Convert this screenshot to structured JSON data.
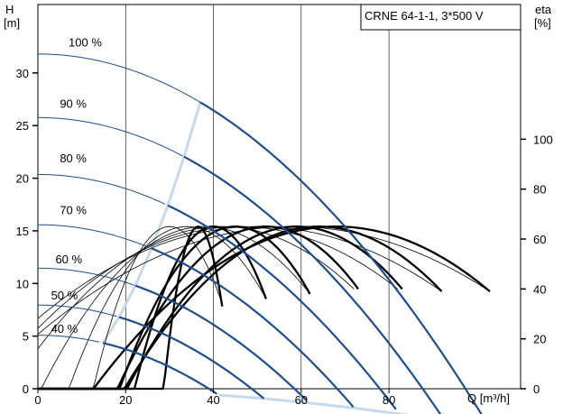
{
  "chart_data": {
    "type": "line",
    "title": "CRNE 64-1-1, 3*500 V",
    "y_left_label": [
      "H",
      "[m]"
    ],
    "y_right_label": [
      "eta",
      "[%]"
    ],
    "x_unit_label": "Q [m³/h]",
    "x_ticks": [
      "0",
      "20",
      "40",
      "60",
      "80"
    ],
    "y_left_ticks": [
      "0",
      "5",
      "10",
      "15",
      "20",
      "25",
      "30"
    ],
    "y_right_ticks": [
      "0",
      "20",
      "40",
      "60",
      "80",
      "100"
    ],
    "xlim": [
      0,
      110
    ],
    "ylim_left": [
      0,
      36.5
    ],
    "ylim_right": [
      0,
      154
    ],
    "grid": true,
    "colors": {
      "head_curve": "#1f4e8c",
      "head_extension": "#1f4e8c",
      "envelope": "#c7d9ec",
      "efficiency": "#000000"
    },
    "speed_curves": [
      {
        "label": "100 %",
        "speed": 1.0,
        "label_at": [
          7,
          32.5
        ]
      },
      {
        "label": "90 %",
        "speed": 0.9,
        "label_at": [
          5,
          26.7
        ]
      },
      {
        "label": "80 %",
        "speed": 0.8,
        "label_at": [
          5,
          21.5
        ]
      },
      {
        "label": "70 %",
        "speed": 0.7,
        "label_at": [
          5,
          16.6
        ]
      },
      {
        "label": "60 %",
        "speed": 0.6,
        "label_at": [
          4,
          11.9
        ]
      },
      {
        "label": "50 %",
        "speed": 0.5,
        "label_at": [
          3,
          8.5
        ]
      },
      {
        "label": "40 %",
        "speed": 0.4,
        "label_at": [
          3,
          5.3
        ]
      }
    ],
    "head_model": {
      "h0": 31.8,
      "k": 0.00335,
      "q_min_full": 37,
      "q_max_full": 103
    },
    "efficiency_curves": [
      {
        "q_peak": 30.0,
        "peak": 65,
        "end_q": 42,
        "end_eta": 34,
        "bold": false
      },
      {
        "q_peak": 34.0,
        "peak": 65,
        "end_q": 52,
        "end_eta": 36,
        "bold": false
      },
      {
        "q_peak": 36.5,
        "peak": 65,
        "end_q": 42,
        "end_eta": 33,
        "bold": true
      },
      {
        "q_peak": 38.0,
        "peak": 65,
        "end_q": 62,
        "end_eta": 38,
        "bold": false
      },
      {
        "q_peak": 40.0,
        "peak": 65,
        "end_q": 52,
        "end_eta": 36,
        "bold": true
      },
      {
        "q_peak": 42.0,
        "peak": 65,
        "end_q": 72,
        "end_eta": 40,
        "bold": false
      },
      {
        "q_peak": 45.0,
        "peak": 65,
        "end_q": 62,
        "end_eta": 38,
        "bold": true
      },
      {
        "q_peak": 46.0,
        "peak": 65,
        "end_q": 82,
        "end_eta": 40,
        "bold": false
      },
      {
        "q_peak": 50.0,
        "peak": 65,
        "end_q": 92,
        "end_eta": 39,
        "bold": false
      },
      {
        "q_peak": 52.0,
        "peak": 65,
        "end_q": 73,
        "end_eta": 40,
        "bold": true
      },
      {
        "q_peak": 58.0,
        "peak": 65,
        "end_q": 103,
        "end_eta": 39,
        "bold": false
      },
      {
        "q_peak": 59.0,
        "peak": 65,
        "end_q": 83,
        "end_eta": 40,
        "bold": true
      },
      {
        "q_peak": 64.0,
        "peak": 65,
        "end_q": 92,
        "end_eta": 39,
        "bold": true
      },
      {
        "q_peak": 68.0,
        "peak": 65,
        "end_q": 103,
        "end_eta": 39,
        "bold": true
      }
    ]
  }
}
